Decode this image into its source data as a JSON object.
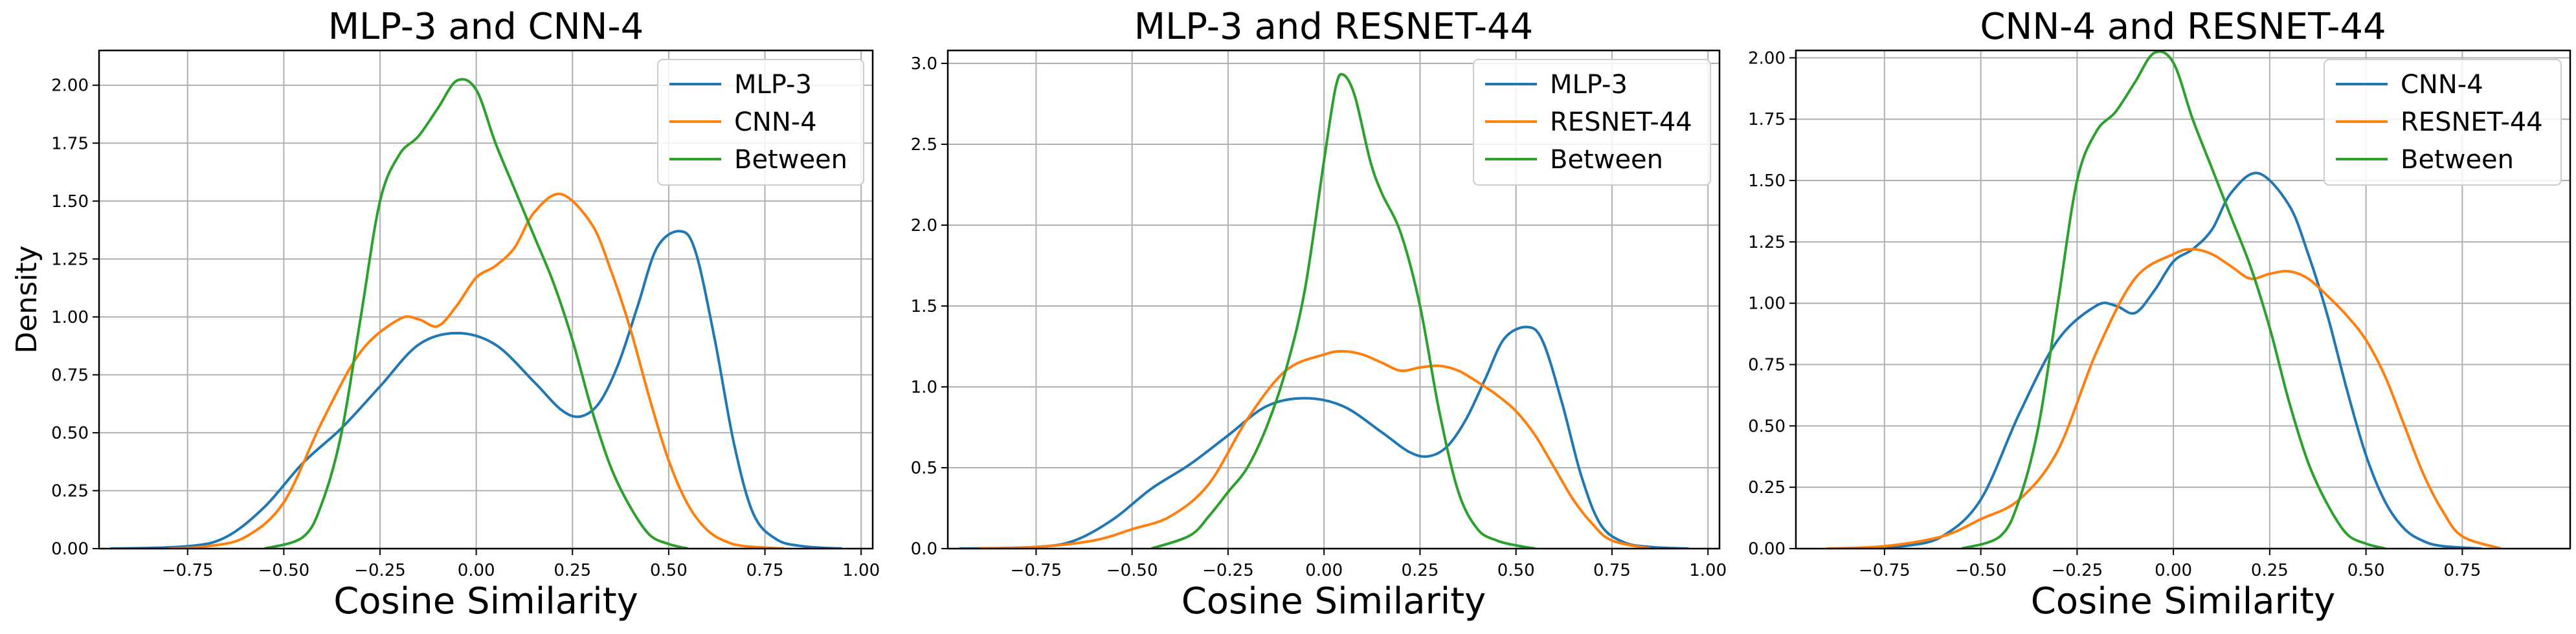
{
  "chart_data": [
    {
      "type": "line",
      "title": "MLP-3 and CNN-4",
      "xlabel": "Cosine Similarity",
      "ylabel": "Density",
      "xlim": [
        -0.98,
        1.03
      ],
      "ylim": [
        0,
        2.15
      ],
      "xticks": [
        "−0.75",
        "−0.50",
        "−0.25",
        "0.00",
        "0.25",
        "0.50",
        "0.75",
        "1.00"
      ],
      "xtick_values": [
        -0.75,
        -0.5,
        -0.25,
        0.0,
        0.25,
        0.5,
        0.75,
        1.0
      ],
      "yticks": [
        "0.00",
        "0.25",
        "0.50",
        "0.75",
        "1.00",
        "1.25",
        "1.50",
        "1.75",
        "2.00"
      ],
      "ytick_values": [
        0,
        0.25,
        0.5,
        0.75,
        1.0,
        1.25,
        1.5,
        1.75,
        2.0
      ],
      "grid": true,
      "legend_position": "top-right",
      "series": [
        {
          "name": "MLP-3",
          "color": "#1f77b4",
          "x": [
            -0.95,
            -0.75,
            -0.65,
            -0.55,
            -0.45,
            -0.35,
            -0.25,
            -0.15,
            -0.05,
            0.05,
            0.15,
            0.22,
            0.27,
            0.32,
            0.37,
            0.42,
            0.47,
            0.53,
            0.57,
            0.62,
            0.67,
            0.72,
            0.78,
            0.85,
            0.95
          ],
          "y": [
            0.0,
            0.01,
            0.05,
            0.18,
            0.37,
            0.52,
            0.7,
            0.88,
            0.93,
            0.88,
            0.72,
            0.6,
            0.57,
            0.63,
            0.8,
            1.05,
            1.3,
            1.37,
            1.28,
            0.9,
            0.45,
            0.15,
            0.04,
            0.01,
            0.0
          ]
        },
        {
          "name": "CNN-4",
          "color": "#ff7f0e",
          "x": [
            -0.8,
            -0.7,
            -0.6,
            -0.5,
            -0.4,
            -0.3,
            -0.2,
            -0.15,
            -0.1,
            -0.05,
            0.0,
            0.05,
            0.1,
            0.15,
            0.22,
            0.3,
            0.35,
            0.4,
            0.45,
            0.5,
            0.55,
            0.6,
            0.65,
            0.7,
            0.8
          ],
          "y": [
            0.0,
            0.01,
            0.05,
            0.2,
            0.55,
            0.85,
            0.99,
            0.99,
            0.96,
            1.05,
            1.17,
            1.22,
            1.3,
            1.45,
            1.53,
            1.4,
            1.2,
            0.95,
            0.65,
            0.38,
            0.19,
            0.08,
            0.03,
            0.01,
            0.0
          ]
        },
        {
          "name": "Between",
          "color": "#2ca02c",
          "x": [
            -0.55,
            -0.45,
            -0.4,
            -0.35,
            -0.3,
            -0.25,
            -0.2,
            -0.15,
            -0.1,
            -0.05,
            0.0,
            0.05,
            0.1,
            0.15,
            0.2,
            0.25,
            0.3,
            0.35,
            0.4,
            0.45,
            0.5,
            0.55
          ],
          "y": [
            0.0,
            0.05,
            0.2,
            0.5,
            1.0,
            1.5,
            1.7,
            1.78,
            1.9,
            2.02,
            1.98,
            1.75,
            1.55,
            1.35,
            1.15,
            0.9,
            0.6,
            0.35,
            0.18,
            0.06,
            0.02,
            0.0
          ]
        }
      ]
    },
    {
      "type": "line",
      "title": "MLP-3 and RESNET-44",
      "xlabel": "Cosine Similarity",
      "ylabel": "",
      "xlim": [
        -0.98,
        1.03
      ],
      "ylim": [
        0,
        3.08
      ],
      "xticks": [
        "−0.75",
        "−0.50",
        "−0.25",
        "0.00",
        "0.25",
        "0.50",
        "0.75",
        "1.00"
      ],
      "xtick_values": [
        -0.75,
        -0.5,
        -0.25,
        0.0,
        0.25,
        0.5,
        0.75,
        1.0
      ],
      "yticks": [
        "0.0",
        "0.5",
        "1.0",
        "1.5",
        "2.0",
        "2.5",
        "3.0"
      ],
      "ytick_values": [
        0,
        0.5,
        1.0,
        1.5,
        2.0,
        2.5,
        3.0
      ],
      "grid": true,
      "legend_position": "top-right",
      "series": [
        {
          "name": "MLP-3",
          "color": "#1f77b4",
          "x": [
            -0.95,
            -0.75,
            -0.65,
            -0.55,
            -0.45,
            -0.35,
            -0.25,
            -0.15,
            -0.05,
            0.05,
            0.15,
            0.22,
            0.27,
            0.32,
            0.37,
            0.42,
            0.47,
            0.53,
            0.57,
            0.62,
            0.67,
            0.72,
            0.78,
            0.85,
            0.95
          ],
          "y": [
            0.0,
            0.01,
            0.05,
            0.18,
            0.37,
            0.52,
            0.7,
            0.88,
            0.93,
            0.88,
            0.72,
            0.6,
            0.57,
            0.63,
            0.8,
            1.05,
            1.3,
            1.37,
            1.28,
            0.9,
            0.45,
            0.15,
            0.04,
            0.01,
            0.0
          ]
        },
        {
          "name": "RESNET-44",
          "color": "#ff7f0e",
          "x": [
            -0.9,
            -0.75,
            -0.6,
            -0.5,
            -0.4,
            -0.3,
            -0.2,
            -0.1,
            0.0,
            0.05,
            0.1,
            0.15,
            0.2,
            0.25,
            0.3,
            0.35,
            0.4,
            0.45,
            0.5,
            0.55,
            0.6,
            0.65,
            0.7,
            0.75,
            0.85
          ],
          "y": [
            0.0,
            0.01,
            0.05,
            0.12,
            0.2,
            0.4,
            0.8,
            1.1,
            1.2,
            1.22,
            1.2,
            1.15,
            1.1,
            1.12,
            1.13,
            1.1,
            1.03,
            0.95,
            0.85,
            0.7,
            0.5,
            0.3,
            0.15,
            0.05,
            0.0
          ]
        },
        {
          "name": "Between",
          "color": "#2ca02c",
          "x": [
            -0.45,
            -0.35,
            -0.3,
            -0.25,
            -0.2,
            -0.15,
            -0.1,
            -0.05,
            0.0,
            0.03,
            0.05,
            0.08,
            0.12,
            0.15,
            0.2,
            0.25,
            0.3,
            0.35,
            0.4,
            0.45,
            0.5,
            0.55
          ],
          "y": [
            0.0,
            0.08,
            0.2,
            0.35,
            0.5,
            0.75,
            1.1,
            1.6,
            2.4,
            2.85,
            2.93,
            2.8,
            2.4,
            2.2,
            1.95,
            1.5,
            0.85,
            0.35,
            0.12,
            0.05,
            0.02,
            0.0
          ]
        }
      ]
    },
    {
      "type": "line",
      "title": "CNN-4 and RESNET-44",
      "xlabel": "Cosine Similarity",
      "ylabel": "",
      "xlim": [
        -0.98,
        1.03
      ],
      "ylim": [
        0,
        2.03
      ],
      "xticks": [
        "−0.75",
        "−0.50",
        "−0.25",
        "0.00",
        "0.25",
        "0.50",
        "0.75"
      ],
      "xtick_values": [
        -0.75,
        -0.5,
        -0.25,
        0.0,
        0.25,
        0.5,
        0.75
      ],
      "yticks": [
        "0.00",
        "0.25",
        "0.50",
        "0.75",
        "1.00",
        "1.25",
        "1.50",
        "1.75",
        "2.00"
      ],
      "ytick_values": [
        0,
        0.25,
        0.5,
        0.75,
        1.0,
        1.25,
        1.5,
        1.75,
        2.0
      ],
      "grid": true,
      "legend_position": "top-right",
      "series": [
        {
          "name": "CNN-4",
          "color": "#1f77b4",
          "x": [
            -0.8,
            -0.7,
            -0.6,
            -0.5,
            -0.4,
            -0.3,
            -0.2,
            -0.15,
            -0.1,
            -0.05,
            0.0,
            0.05,
            0.1,
            0.15,
            0.22,
            0.3,
            0.35,
            0.4,
            0.45,
            0.5,
            0.55,
            0.6,
            0.65,
            0.7,
            0.8
          ],
          "y": [
            0.0,
            0.01,
            0.05,
            0.2,
            0.55,
            0.85,
            0.99,
            0.99,
            0.96,
            1.05,
            1.17,
            1.22,
            1.3,
            1.45,
            1.53,
            1.4,
            1.2,
            0.95,
            0.65,
            0.38,
            0.19,
            0.08,
            0.03,
            0.01,
            0.0
          ]
        },
        {
          "name": "RESNET-44",
          "color": "#ff7f0e",
          "x": [
            -0.9,
            -0.75,
            -0.6,
            -0.5,
            -0.4,
            -0.3,
            -0.2,
            -0.1,
            0.0,
            0.05,
            0.1,
            0.15,
            0.2,
            0.25,
            0.3,
            0.35,
            0.4,
            0.45,
            0.5,
            0.55,
            0.6,
            0.65,
            0.7,
            0.75,
            0.85
          ],
          "y": [
            0.0,
            0.01,
            0.05,
            0.12,
            0.2,
            0.4,
            0.8,
            1.1,
            1.2,
            1.22,
            1.2,
            1.15,
            1.1,
            1.12,
            1.13,
            1.1,
            1.03,
            0.95,
            0.85,
            0.7,
            0.5,
            0.3,
            0.15,
            0.05,
            0.0
          ]
        },
        {
          "name": "Between",
          "color": "#2ca02c",
          "x": [
            -0.55,
            -0.45,
            -0.4,
            -0.35,
            -0.3,
            -0.25,
            -0.2,
            -0.15,
            -0.1,
            -0.05,
            0.0,
            0.05,
            0.1,
            0.15,
            0.2,
            0.25,
            0.3,
            0.35,
            0.4,
            0.45,
            0.5,
            0.55
          ],
          "y": [
            0.0,
            0.05,
            0.2,
            0.5,
            1.0,
            1.5,
            1.7,
            1.78,
            1.9,
            2.02,
            1.98,
            1.75,
            1.55,
            1.35,
            1.15,
            0.9,
            0.6,
            0.35,
            0.18,
            0.06,
            0.02,
            0.0
          ]
        }
      ]
    }
  ]
}
